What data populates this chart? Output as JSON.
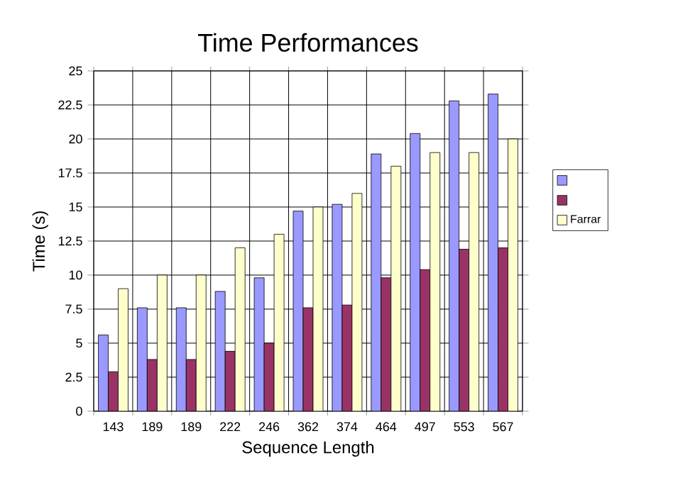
{
  "chart_data": {
    "type": "bar",
    "title": "Time Performances",
    "xlabel": "Sequence Length",
    "ylabel": "Time (s)",
    "categories": [
      "143",
      "189",
      "189",
      "222",
      "246",
      "362",
      "374",
      "464",
      "497",
      "553",
      "567"
    ],
    "series": [
      {
        "color": "#9999ff",
        "values": [
          5.6,
          7.6,
          7.6,
          8.8,
          9.8,
          14.7,
          15.2,
          18.9,
          20.4,
          22.8,
          23.3
        ]
      },
      {
        "color": "#993366",
        "values": [
          2.9,
          3.8,
          3.8,
          4.4,
          5.0,
          7.6,
          7.8,
          9.8,
          10.4,
          11.9,
          12.0
        ]
      },
      {
        "name": "Farrar",
        "color": "#ffffcc",
        "values": [
          9,
          10,
          10,
          12,
          13,
          15,
          16,
          18,
          19,
          19,
          20
        ]
      }
    ],
    "ylim": [
      0,
      25
    ],
    "yticks": [
      0,
      2.5,
      5,
      7.5,
      10,
      12.5,
      15,
      17.5,
      20,
      22.5,
      25
    ],
    "grid": true,
    "legend": "right"
  }
}
